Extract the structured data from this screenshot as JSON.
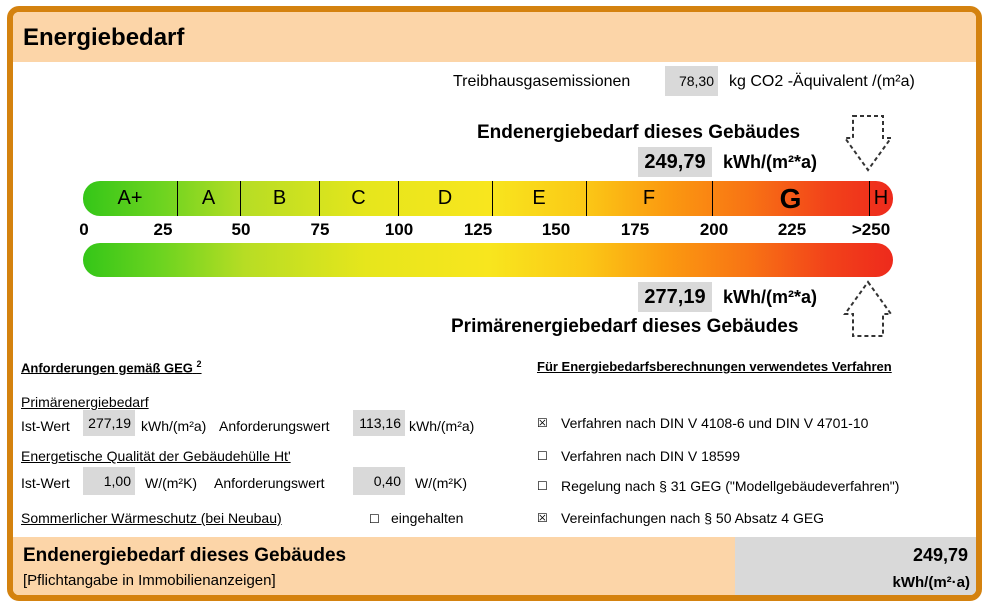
{
  "header": {
    "title": "Energiebedarf"
  },
  "emissions": {
    "label": "Treibhausgasemissionen",
    "value": "78,30",
    "unit": "kg CO2 -Äquivalent /(m²a)"
  },
  "end_energy": {
    "title": "Endenergiebedarf dieses Gebäudes",
    "value": "249,79",
    "unit": "kWh/(m²*a)"
  },
  "primary_energy": {
    "title": "Primärenergiebedarf dieses Gebäudes",
    "value": "277,19",
    "unit": "kWh/(m²*a)"
  },
  "scale": {
    "classes": [
      "A+",
      "A",
      "B",
      "C",
      "D",
      "E",
      "F",
      "G",
      "H"
    ],
    "ticks": [
      "0",
      "25",
      "50",
      "75",
      "100",
      "125",
      "150",
      "175",
      "200",
      "225",
      ">250"
    ],
    "highlighted_class": "G"
  },
  "requirements": {
    "heading": "Anforderungen gemäß GEG",
    "heading_sup": "2",
    "primary_label": "Primärenergiebedarf",
    "ist_label": "Ist-Wert",
    "ist_primary": "277,19",
    "unit_kwh": "kWh/(m²a)",
    "anf_label": "Anforderungswert",
    "anf_primary": "113,16",
    "envelope_label": "Energetische Qualität der Gebäudehülle Ht'",
    "ist_envelope": "1,00",
    "unit_w": "W/(m²K)",
    "anf_envelope": "0,40",
    "summer_label": "Sommerlicher Wärmeschutz (bei Neubau)",
    "summer_status": "eingehalten"
  },
  "methods": {
    "heading": "Für Energiebedarfsberechnungen verwendetes Verfahren",
    "items": [
      {
        "label": "Verfahren nach DIN V 4108-6 und DIN V 4701-10",
        "checked": true
      },
      {
        "label": "Verfahren nach DIN V 18599",
        "checked": false
      },
      {
        "label": "Regelung nach § 31 GEG (\"Modellgebäudeverfahren\")",
        "checked": false
      },
      {
        "label": "Vereinfachungen nach § 50 Absatz 4 GEG",
        "checked": true
      }
    ]
  },
  "footer": {
    "title": "Endenergiebedarf dieses Gebäudes",
    "subtitle": "[Pflichtangabe in Immobilienanzeigen]",
    "value": "249,79",
    "unit": "kWh/(m²·a)"
  },
  "colors": {
    "frame": "#d4820f",
    "header_bg": "#fcd5a8",
    "value_bg": "#d9d9d9"
  }
}
